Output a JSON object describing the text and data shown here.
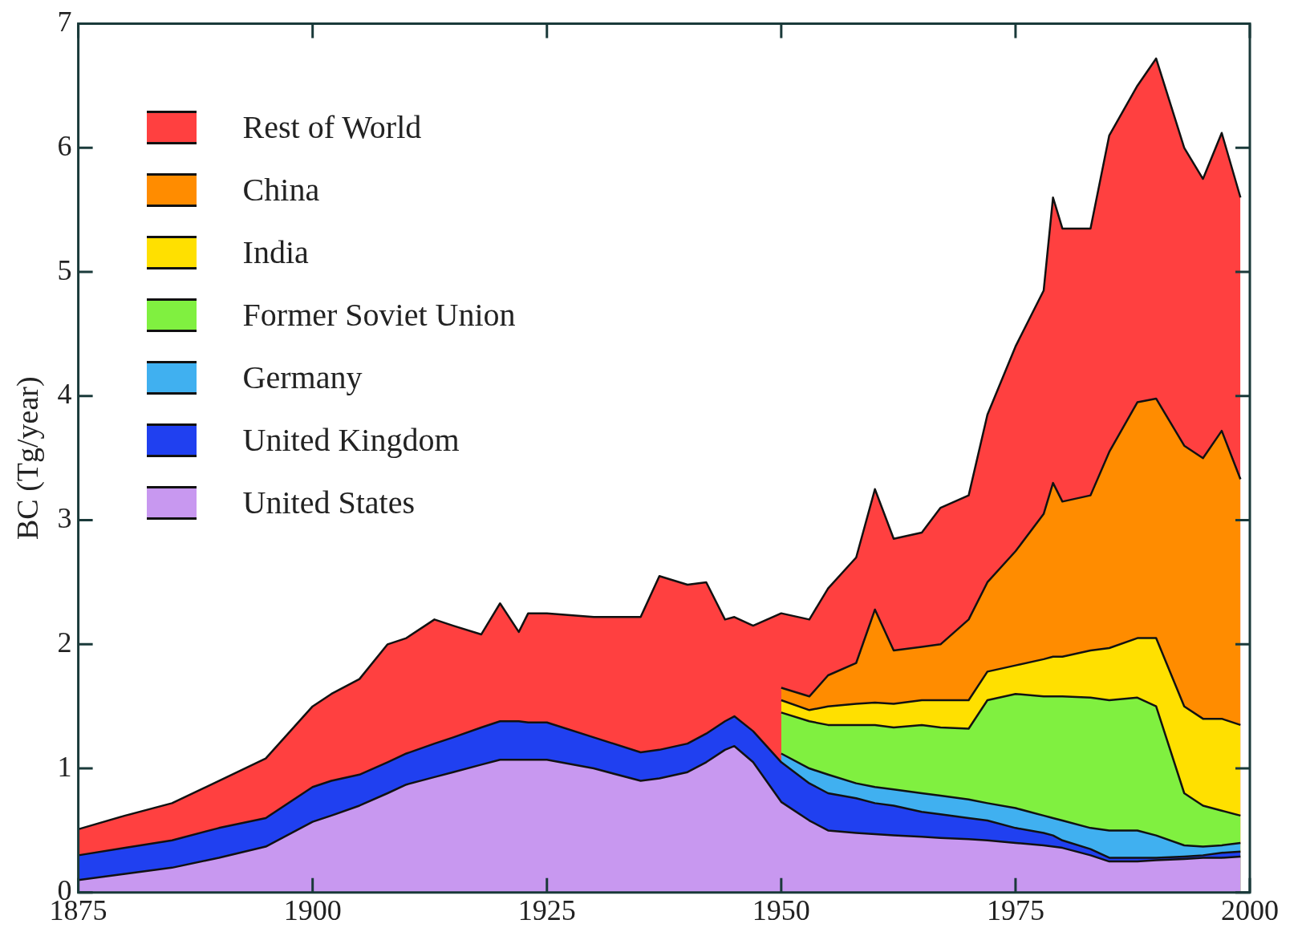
{
  "chart_data": {
    "type": "area",
    "stacked": true,
    "ylabel": "BC (Tg/year)",
    "x": [
      1875,
      1880,
      1885,
      1890,
      1895,
      1900,
      1902,
      1905,
      1908,
      1910,
      1913,
      1915,
      1918,
      1920,
      1922,
      1923,
      1925,
      1930,
      1935,
      1937,
      1940,
      1942,
      1944,
      1945,
      1947,
      1950,
      1953,
      1955,
      1958,
      1960,
      1962,
      1965,
      1967,
      1970,
      1972,
      1975,
      1978,
      1979,
      1980,
      1983,
      1985,
      1988,
      1990,
      1993,
      1995,
      1997,
      1999
    ],
    "series": [
      {
        "name": "United States",
        "color": "#c898f0",
        "values": [
          0.1,
          0.15,
          0.2,
          0.28,
          0.37,
          0.57,
          0.62,
          0.7,
          0.8,
          0.87,
          0.93,
          0.97,
          1.03,
          1.07,
          1.07,
          1.07,
          1.07,
          1.0,
          0.9,
          0.92,
          0.97,
          1.05,
          1.15,
          1.18,
          1.05,
          0.73,
          0.58,
          0.5,
          0.48,
          0.47,
          0.46,
          0.45,
          0.44,
          0.43,
          0.42,
          0.4,
          0.38,
          0.37,
          0.36,
          0.3,
          0.25,
          0.25,
          0.26,
          0.27,
          0.28,
          0.28,
          0.29
        ]
      },
      {
        "name": "United Kingdom",
        "color": "#2040f0",
        "values": [
          0.2,
          0.21,
          0.22,
          0.24,
          0.23,
          0.28,
          0.28,
          0.25,
          0.25,
          0.25,
          0.27,
          0.28,
          0.3,
          0.31,
          0.31,
          0.3,
          0.3,
          0.25,
          0.23,
          0.23,
          0.23,
          0.23,
          0.23,
          0.24,
          0.25,
          0.32,
          0.3,
          0.3,
          0.28,
          0.25,
          0.24,
          0.2,
          0.19,
          0.17,
          0.16,
          0.12,
          0.1,
          0.09,
          0.06,
          0.05,
          0.03,
          0.03,
          0.02,
          0.02,
          0.02,
          0.04,
          0.04
        ]
      },
      {
        "name": "Germany",
        "color": "#40b0f0",
        "values": [
          null,
          null,
          null,
          null,
          null,
          null,
          null,
          null,
          null,
          null,
          null,
          null,
          null,
          null,
          null,
          null,
          null,
          null,
          null,
          null,
          null,
          null,
          null,
          null,
          null,
          0.07,
          0.12,
          0.15,
          0.12,
          0.13,
          0.13,
          0.15,
          0.15,
          0.15,
          0.14,
          0.16,
          0.14,
          0.14,
          0.16,
          0.17,
          0.22,
          0.22,
          0.18,
          0.09,
          0.07,
          0.06,
          0.07
        ]
      },
      {
        "name": "Former Soviet Union",
        "color": "#80f040",
        "values": [
          null,
          null,
          null,
          null,
          null,
          null,
          null,
          null,
          null,
          null,
          null,
          null,
          null,
          null,
          null,
          null,
          null,
          null,
          null,
          null,
          null,
          null,
          null,
          null,
          null,
          0.33,
          0.38,
          0.4,
          0.47,
          0.5,
          0.5,
          0.55,
          0.55,
          0.57,
          0.83,
          0.92,
          0.96,
          0.98,
          1.0,
          1.05,
          1.05,
          1.07,
          1.04,
          0.42,
          0.33,
          0.28,
          0.22
        ]
      },
      {
        "name": "India",
        "color": "#ffe000",
        "values": [
          null,
          null,
          null,
          null,
          null,
          null,
          null,
          null,
          null,
          null,
          null,
          null,
          null,
          null,
          null,
          null,
          null,
          null,
          null,
          null,
          null,
          null,
          null,
          null,
          null,
          0.1,
          0.09,
          0.15,
          0.17,
          0.18,
          0.19,
          0.2,
          0.22,
          0.23,
          0.23,
          0.23,
          0.3,
          0.32,
          0.32,
          0.38,
          0.42,
          0.48,
          0.55,
          0.7,
          0.7,
          0.74,
          0.73
        ]
      },
      {
        "name": "China",
        "color": "#ff8c00",
        "values": [
          null,
          null,
          null,
          null,
          null,
          null,
          null,
          null,
          null,
          null,
          null,
          null,
          null,
          null,
          null,
          null,
          null,
          null,
          null,
          null,
          null,
          null,
          null,
          null,
          null,
          0.1,
          0.11,
          0.25,
          0.33,
          0.75,
          0.43,
          0.43,
          0.45,
          0.65,
          0.72,
          0.92,
          1.17,
          1.4,
          1.25,
          1.25,
          1.58,
          1.9,
          1.93,
          2.1,
          2.1,
          2.32,
          1.98
        ]
      },
      {
        "name": "Rest of World",
        "color": "#ff4040",
        "values": [
          0.21,
          0.26,
          0.3,
          0.38,
          0.48,
          0.65,
          0.7,
          0.77,
          0.95,
          0.93,
          1.0,
          0.9,
          0.75,
          0.95,
          0.72,
          0.88,
          0.88,
          0.97,
          1.09,
          1.4,
          1.28,
          1.22,
          0.82,
          0.8,
          0.85,
          0.6,
          0.62,
          0.7,
          0.85,
          0.97,
          0.9,
          0.92,
          1.1,
          1.0,
          1.35,
          1.65,
          1.8,
          2.3,
          2.2,
          2.15,
          2.55,
          2.55,
          2.74,
          2.4,
          2.25,
          2.4,
          2.27
        ]
      }
    ],
    "xlim": [
      1875,
      2000
    ],
    "xticks": [
      1875,
      1900,
      1925,
      1950,
      1975,
      2000
    ],
    "ylim": [
      0,
      7
    ],
    "yticks": [
      0,
      1,
      2,
      3,
      4,
      5,
      6,
      7
    ],
    "legend": "top left"
  }
}
